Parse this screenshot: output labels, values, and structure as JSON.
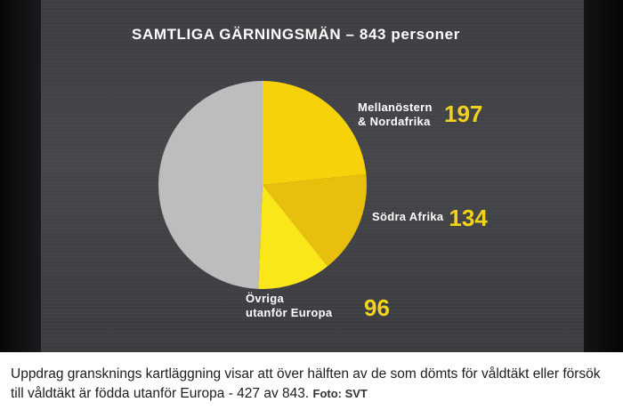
{
  "chart_data": {
    "type": "pie",
    "title": "SAMTLIGA GÄRNINGSMÄN – 843 personer",
    "total": 843,
    "slices": [
      {
        "label_lines": [
          "Mellanöstern",
          "& Nordafrika"
        ],
        "value": 197,
        "color": "#f6d20a"
      },
      {
        "label_lines": [
          "Södra Afrika"
        ],
        "value": 134,
        "color": "#e8bf0c"
      },
      {
        "label_lines": [
          "Övriga",
          "utanför Europa"
        ],
        "value": 96,
        "color": "#fae71a"
      },
      {
        "label_lines": [],
        "value": 416,
        "color": "#bdbdbd"
      }
    ]
  },
  "caption": {
    "text": "Uppdrag gransknings kartläggning visar att över hälften av de som dömts för våldtäkt eller försök till våldtäkt är födda utanför Europa - 427 av 843.",
    "credit": "Foto: SVT"
  }
}
